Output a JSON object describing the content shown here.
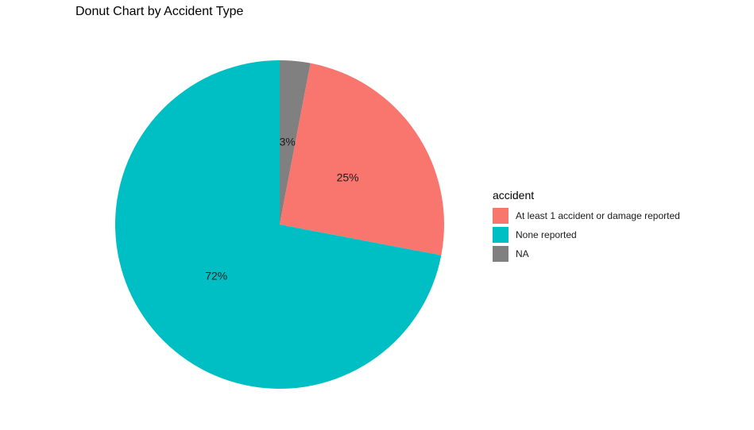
{
  "chart_data": {
    "type": "pie",
    "title": "Donut Chart by Accident Type",
    "legend_title": "accident",
    "legend_position": "right",
    "categories": [
      "At least 1 accident or damage reported",
      "None reported",
      "NA"
    ],
    "values": [
      25,
      72,
      3
    ],
    "labels": [
      "25%",
      "72%",
      "3%"
    ],
    "colors": [
      "#F8766D",
      "#00BFC4",
      "#808080"
    ],
    "start_category": "NA",
    "direction": "clockwise"
  }
}
